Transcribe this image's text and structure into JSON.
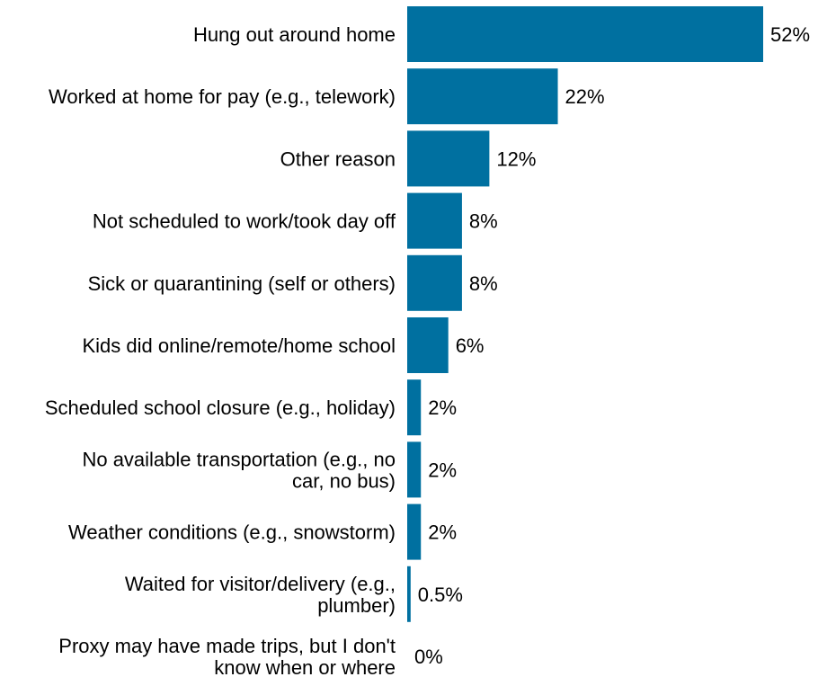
{
  "chart_data": {
    "type": "bar",
    "orientation": "horizontal",
    "categories": [
      [
        "Hung out around home"
      ],
      [
        "Worked at home for pay (e.g., telework)"
      ],
      [
        "Other reason"
      ],
      [
        "Not scheduled to work/took day off"
      ],
      [
        "Sick or quarantining (self or others)"
      ],
      [
        "Kids did online/remote/home school"
      ],
      [
        "Scheduled school closure (e.g., holiday)"
      ],
      [
        "No available transportation (e.g., no",
        "car, no bus)"
      ],
      [
        "Weather conditions (e.g., snowstorm)"
      ],
      [
        "Waited for visitor/delivery (e.g.,",
        "plumber)"
      ],
      [
        "Proxy may have made trips, but I don't",
        "know when or where"
      ]
    ],
    "values": [
      52,
      22,
      12,
      8,
      8,
      6,
      2,
      2,
      2,
      0.5,
      0
    ],
    "value_labels": [
      "52%",
      "22%",
      "12%",
      "8%",
      "8%",
      "6%",
      "2%",
      "2%",
      "2%",
      "0.5%",
      "0%"
    ],
    "xlim": [
      0,
      52
    ],
    "bar_color": "#0070a0",
    "grid": false,
    "axes_visible": false
  }
}
